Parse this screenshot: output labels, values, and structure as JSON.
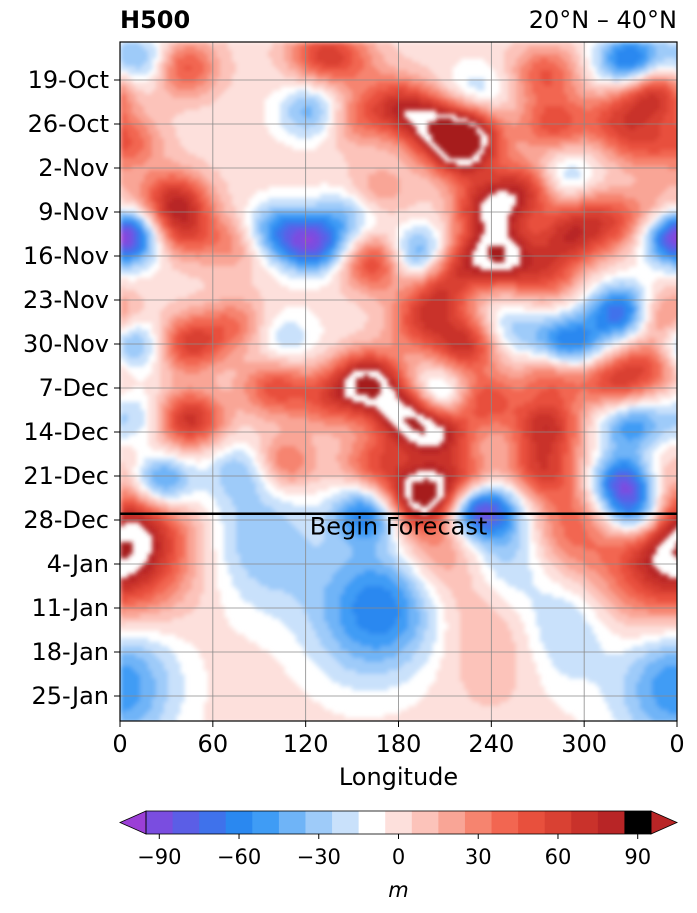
{
  "chart_data": {
    "type": "heatmap",
    "title": "H500",
    "subtitle": "20°N – 40°N",
    "xlabel": "Longitude",
    "x_ticks": [
      "0",
      "60",
      "120",
      "180",
      "240",
      "300",
      "0"
    ],
    "xlim": [
      0,
      360
    ],
    "y_ticks": [
      "19-Oct",
      "26-Oct",
      "2-Nov",
      "9-Nov",
      "16-Nov",
      "23-Nov",
      "30-Nov",
      "7-Dec",
      "14-Dec",
      "21-Dec",
      "28-Dec",
      "4-Jan",
      "11-Jan",
      "18-Jan",
      "25-Jan"
    ],
    "y_axis_direction": "time increasing downward",
    "grid": true,
    "annotation": "Begin Forecast",
    "forecast_start": "27-Dec",
    "colorbar": {
      "label": "m",
      "ticks": [
        "−90",
        "−60",
        "−30",
        "0",
        "30",
        "60",
        "90"
      ],
      "levels": [
        -105,
        -95,
        -85,
        -75,
        -65,
        -55,
        -45,
        -35,
        -25,
        -15,
        -5,
        5,
        15,
        25,
        35,
        45,
        55,
        65,
        75,
        85,
        95,
        105
      ],
      "colors": [
        "#9b3fd6",
        "#7a4de0",
        "#5b5ee6",
        "#3f72eb",
        "#2a88f0",
        "#3f9cf5",
        "#6fb4f7",
        "#9ecbf9",
        "#c9e1fb",
        "#ffffff",
        "#fde0dc",
        "#fcc3ba",
        "#f9a596",
        "#f6846f",
        "#f26651",
        "#e8503d",
        "#d94133",
        "#c9322b",
        "#b82526"
      ],
      "under_color": "#a032d2",
      "over_color": "#a61c1f"
    },
    "anomaly_centers": [
      {
        "lon": 15,
        "date": "16-Oct",
        "value": -45
      },
      {
        "lon": 40,
        "date": "17-Oct",
        "value": 55
      },
      {
        "lon": 130,
        "date": "15-Oct",
        "value": 50
      },
      {
        "lon": 150,
        "date": "16-Oct",
        "value": 25
      },
      {
        "lon": 275,
        "date": "18-Oct",
        "value": 45
      },
      {
        "lon": 330,
        "date": "16-Oct",
        "value": -75
      },
      {
        "lon": 345,
        "date": "21-Oct",
        "value": 70
      },
      {
        "lon": 230,
        "date": "21-Oct",
        "value": -25
      },
      {
        "lon": 200,
        "date": "26-Oct",
        "value": 60
      },
      {
        "lon": 220,
        "date": "30-Oct",
        "value": 85
      },
      {
        "lon": 180,
        "date": "23-Oct",
        "value": 55
      },
      {
        "lon": 225,
        "date": "27-Oct",
        "value": 60
      },
      {
        "lon": 150,
        "date": "25-Oct",
        "value": 35
      },
      {
        "lon": 280,
        "date": "26-Oct",
        "value": 50
      },
      {
        "lon": 320,
        "date": "25-Oct",
        "value": 40
      },
      {
        "lon": 5,
        "date": "29-Oct",
        "value": 40
      },
      {
        "lon": 335,
        "date": "29-Oct",
        "value": 35
      },
      {
        "lon": 125,
        "date": "24-Oct",
        "value": -45
      },
      {
        "lon": 285,
        "date": "4-Nov",
        "value": -45
      },
      {
        "lon": 265,
        "date": "5-Nov",
        "value": 65
      },
      {
        "lon": 300,
        "date": "8-Nov",
        "value": 25
      },
      {
        "lon": 235,
        "date": "6-Nov",
        "value": 20
      },
      {
        "lon": 35,
        "date": "7-Nov",
        "value": 65
      },
      {
        "lon": 40,
        "date": "12-Nov",
        "value": 50
      },
      {
        "lon": 5,
        "date": "13-Nov",
        "value": -75
      },
      {
        "lon": 240,
        "date": "9-Nov",
        "value": 70
      },
      {
        "lon": 245,
        "date": "16-Nov",
        "value": 90
      },
      {
        "lon": 215,
        "date": "17-Nov",
        "value": 55
      },
      {
        "lon": 165,
        "date": "6-Nov",
        "value": 30
      },
      {
        "lon": 150,
        "date": "9-Nov",
        "value": -35
      },
      {
        "lon": 125,
        "date": "14-Nov",
        "value": -80
      },
      {
        "lon": 100,
        "date": "12-Nov",
        "value": -50
      },
      {
        "lon": 75,
        "date": "14-Nov",
        "value": 30
      },
      {
        "lon": 165,
        "date": "17-Nov",
        "value": 60
      },
      {
        "lon": 195,
        "date": "16-Nov",
        "value": -70
      },
      {
        "lon": 290,
        "date": "13-Nov",
        "value": 60
      },
      {
        "lon": 320,
        "date": "11-Nov",
        "value": 40
      },
      {
        "lon": 350,
        "date": "9-Nov",
        "value": 35
      },
      {
        "lon": 355,
        "date": "12-Nov",
        "value": -45
      },
      {
        "lon": 325,
        "date": "25-Nov",
        "value": -80
      },
      {
        "lon": 290,
        "date": "30-Nov",
        "value": -70
      },
      {
        "lon": 350,
        "date": "26-Nov",
        "value": 55
      },
      {
        "lon": 345,
        "date": "3-Dec",
        "value": 45
      },
      {
        "lon": 275,
        "date": "19-Nov",
        "value": 45
      },
      {
        "lon": 205,
        "date": "22-Nov",
        "value": 50
      },
      {
        "lon": 225,
        "date": "30-Nov",
        "value": 70
      },
      {
        "lon": 195,
        "date": "27-Nov",
        "value": 45
      },
      {
        "lon": 250,
        "date": "28-Nov",
        "value": -35
      },
      {
        "lon": 5,
        "date": "30-Nov",
        "value": -60
      },
      {
        "lon": 45,
        "date": "30-Nov",
        "value": 60
      },
      {
        "lon": 75,
        "date": "27-Nov",
        "value": 35
      },
      {
        "lon": 105,
        "date": "29-Nov",
        "value": -25
      },
      {
        "lon": 45,
        "date": "12-Dec",
        "value": 70
      },
      {
        "lon": 10,
        "date": "12-Dec",
        "value": -30
      },
      {
        "lon": 100,
        "date": "7-Dec",
        "value": 50
      },
      {
        "lon": 135,
        "date": "9-Dec",
        "value": 40
      },
      {
        "lon": 160,
        "date": "6-Dec",
        "value": 100
      },
      {
        "lon": 185,
        "date": "11-Dec",
        "value": 90
      },
      {
        "lon": 205,
        "date": "9-Dec",
        "value": -60
      },
      {
        "lon": 205,
        "date": "14-Dec",
        "value": 80
      },
      {
        "lon": 235,
        "date": "9-Dec",
        "value": 55
      },
      {
        "lon": 275,
        "date": "13-Dec",
        "value": 65
      },
      {
        "lon": 280,
        "date": "5-Dec",
        "value": 45
      },
      {
        "lon": 320,
        "date": "6-Dec",
        "value": 55
      },
      {
        "lon": 330,
        "date": "13-Dec",
        "value": -55
      },
      {
        "lon": 25,
        "date": "22-Dec",
        "value": -75
      },
      {
        "lon": 80,
        "date": "20-Dec",
        "value": -30
      },
      {
        "lon": 105,
        "date": "19-Dec",
        "value": 45
      },
      {
        "lon": 165,
        "date": "19-Dec",
        "value": 45
      },
      {
        "lon": 225,
        "date": "22-Dec",
        "value": 55
      },
      {
        "lon": 195,
        "date": "24-Dec",
        "value": 95
      },
      {
        "lon": 230,
        "date": "26-Dec",
        "value": -100
      },
      {
        "lon": 270,
        "date": "20-Dec",
        "value": 50
      },
      {
        "lon": 325,
        "date": "22-Dec",
        "value": -90
      },
      {
        "lon": 335,
        "date": "27-Dec",
        "value": -85
      },
      {
        "lon": 160,
        "date": "27-Dec",
        "value": -60
      },
      {
        "lon": 255,
        "date": "31-Dec",
        "value": -75
      },
      {
        "lon": 280,
        "date": "30-Dec",
        "value": 75
      },
      {
        "lon": 0,
        "date": "1-Jan",
        "value": 55
      },
      {
        "lon": 40,
        "date": "31-Dec",
        "value": 20
      },
      {
        "lon": 70,
        "date": "29-Dec",
        "value": -20
      },
      {
        "lon": 100,
        "date": "2-Jan",
        "value": -25
      },
      {
        "lon": 205,
        "date": "31-Dec",
        "value": 55
      },
      {
        "lon": 360,
        "date": "31-Dec",
        "value": 50
      },
      {
        "lon": 180,
        "date": "9-Jan",
        "value": -55
      },
      {
        "lon": 150,
        "date": "13-Jan",
        "value": -30
      },
      {
        "lon": 290,
        "date": "12-Jan",
        "value": -45
      },
      {
        "lon": 245,
        "date": "14-Jan",
        "value": 25
      },
      {
        "lon": 320,
        "date": "10-Jan",
        "value": 25
      },
      {
        "lon": 350,
        "date": "23-Jan",
        "value": -35
      },
      {
        "lon": 10,
        "date": "23-Jan",
        "value": -25
      }
    ]
  }
}
